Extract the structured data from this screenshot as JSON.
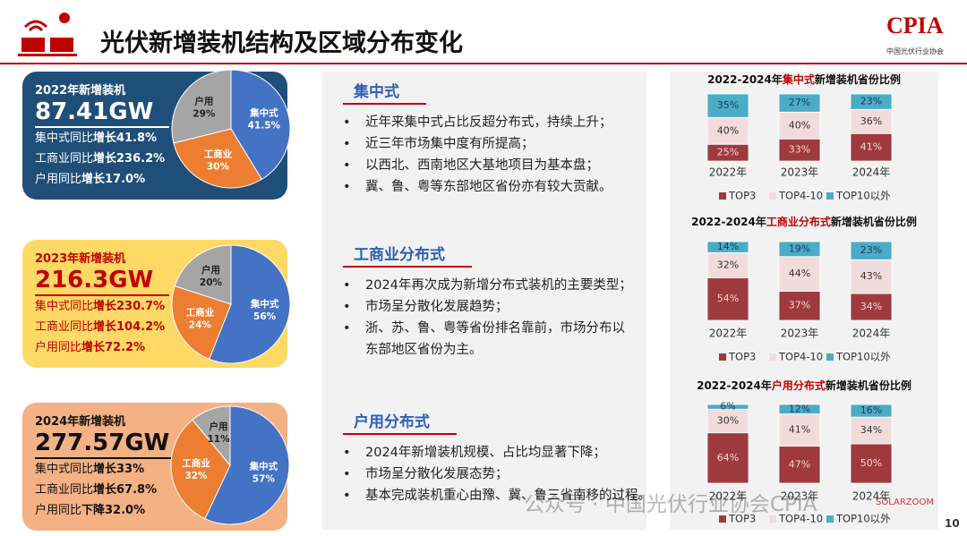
{
  "header": {
    "title": "光伏新增装机结构及区域分布变化",
    "logo": "CPIA",
    "logo_sub": "中国光伏行业协会"
  },
  "summaries": [
    {
      "label": "2022年新增装机",
      "total": "87.41GW",
      "lines": [
        {
          "prefix": "集中式同比",
          "emphasis": "增长41.8%"
        },
        {
          "prefix": "工商业同比",
          "emphasis": "增长236.2%"
        },
        {
          "prefix": "户用同比",
          "emphasis": "增长17.0%"
        }
      ]
    },
    {
      "label": "2023年新增装机",
      "total": "216.3GW",
      "lines": [
        {
          "prefix": "集中式同比",
          "emphasis": "增长230.7%"
        },
        {
          "prefix": "工商业同比",
          "emphasis": "增长104.2%"
        },
        {
          "prefix": "户用同比",
          "emphasis": "增长72.2%"
        }
      ]
    },
    {
      "label": "2024年新增装机",
      "total": "277.57GW",
      "lines": [
        {
          "prefix": "集中式同比",
          "emphasis": "增长33%"
        },
        {
          "prefix": "工商业同比",
          "emphasis": "增长67.8%"
        },
        {
          "prefix": "户用同比",
          "emphasis": "下降32.0%"
        }
      ]
    }
  ],
  "sections": [
    {
      "heading": "集中式",
      "bullets": [
        "近年来集中式占比反超分布式，持续上升；",
        "近三年市场集中度有所提高；",
        "以西北、西南地区大基地项目为基本盘；",
        "冀、鲁、粤等东部地区省份亦有较大贡献。"
      ]
    },
    {
      "heading": "工商业分布式",
      "bullets": [
        "2024年再次成为新增分布式装机的主要类型；",
        "市场呈分散化发展趋势；",
        "浙、苏、鲁、粤等省份排名靠前，市场分布以东部地区省份为主。"
      ]
    },
    {
      "heading": "户用分布式",
      "bullets": [
        "2024年新增装机规模、占比均显著下降；",
        "市场呈分散化发展态势；",
        "基本完成装机重心由豫、冀、鲁三省南移的过程。"
      ]
    }
  ],
  "chart_data": [
    {
      "type": "pie",
      "categories": [
        "集中式",
        "工商业",
        "户用"
      ],
      "values": [
        41.5,
        30,
        29
      ],
      "value_labels": [
        "41.5%",
        "30%",
        "29%"
      ],
      "colors": [
        "#4472c4",
        "#ed7d31",
        "#a5a5a5"
      ]
    },
    {
      "type": "pie",
      "categories": [
        "集中式",
        "工商业",
        "户用"
      ],
      "values": [
        56,
        24,
        20
      ],
      "value_labels": [
        "56%",
        "24%",
        "20%"
      ],
      "colors": [
        "#4472c4",
        "#ed7d31",
        "#a5a5a5"
      ]
    },
    {
      "type": "pie",
      "categories": [
        "集中式",
        "工商业",
        "户用"
      ],
      "values": [
        57,
        32,
        11
      ],
      "value_labels": [
        "57%",
        "32%",
        "11%"
      ],
      "colors": [
        "#4472c4",
        "#ed7d31",
        "#a5a5a5"
      ]
    },
    {
      "type": "stacked_bar",
      "title": [
        "2022-2024年",
        "集中式",
        "新增装机省份比例"
      ],
      "categories": [
        "2022年",
        "2023年",
        "2024年"
      ],
      "ylim": [
        0,
        100
      ],
      "series": [
        {
          "name": "TOP3",
          "color": "#9e3a3e",
          "values": [
            25,
            33,
            41
          ],
          "value_labels": [
            "25%",
            "33%",
            "41%"
          ]
        },
        {
          "name": "TOP4-10",
          "color": "#f2dcdb",
          "values": [
            40,
            40,
            36
          ],
          "value_labels": [
            "40%",
            "40%",
            "36%"
          ]
        },
        {
          "name": "TOP10以外",
          "color": "#4bacc6",
          "values": [
            35,
            27,
            23
          ],
          "value_labels": [
            "35%",
            "27%",
            "23%"
          ]
        }
      ]
    },
    {
      "type": "stacked_bar",
      "title": [
        "2022-2024年",
        "工商业分布式",
        "新增装机省份比例"
      ],
      "categories": [
        "2022年",
        "2023年",
        "2024年"
      ],
      "ylim": [
        0,
        100
      ],
      "series": [
        {
          "name": "TOP3",
          "color": "#9e3a3e",
          "values": [
            54,
            37,
            34
          ],
          "value_labels": [
            "54%",
            "37%",
            "34%"
          ]
        },
        {
          "name": "TOP4-10",
          "color": "#f2dcdb",
          "values": [
            32,
            44,
            43
          ],
          "value_labels": [
            "32%",
            "44%",
            "43%"
          ]
        },
        {
          "name": "TOP10以外",
          "color": "#4bacc6",
          "values": [
            14,
            19,
            23
          ],
          "value_labels": [
            "14%",
            "19%",
            "23%"
          ]
        }
      ]
    },
    {
      "type": "stacked_bar",
      "title": [
        "2022-2024年",
        "户用分布式",
        "新增装机省份比例"
      ],
      "categories": [
        "2022年",
        "2023年",
        "2024年"
      ],
      "ylim": [
        0,
        100
      ],
      "series": [
        {
          "name": "TOP3",
          "color": "#9e3a3e",
          "values": [
            64,
            47,
            50
          ],
          "value_labels": [
            "64%",
            "47%",
            "50%"
          ]
        },
        {
          "name": "TOP4-10",
          "color": "#f2dcdb",
          "values": [
            30,
            41,
            34
          ],
          "value_labels": [
            "30%",
            "41%",
            "34%"
          ]
        },
        {
          "name": "TOP10以外",
          "color": "#4bacc6",
          "values": [
            6,
            12,
            16
          ],
          "value_labels": [
            "6%",
            "12%",
            "16%"
          ]
        }
      ]
    }
  ],
  "footer": {
    "watermark": "公众号 · 中国光伏行业协会CPIA",
    "source": "SOLARZOOM",
    "page": "10"
  }
}
